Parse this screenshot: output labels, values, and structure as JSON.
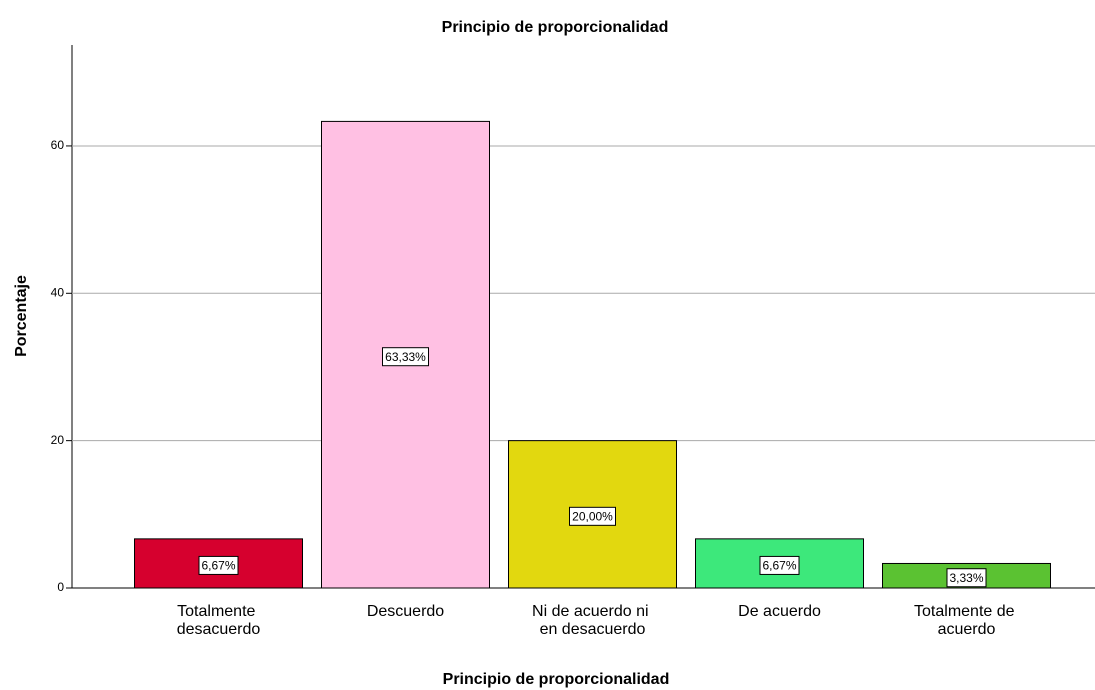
{
  "chart_data": {
    "type": "bar",
    "title": "Principio de proporcionalidad",
    "x_label": "Principio de proporcionalidad",
    "y_label": "Porcentaje",
    "categories": [
      "Totalmente desacuerdo",
      "Descuerdo",
      "Ni de acuerdo ni en desacuerdo",
      "De acuerdo",
      "Totalmente de acuerdo"
    ],
    "values": [
      6.67,
      63.33,
      20.0,
      6.67,
      3.33
    ],
    "value_labels": [
      "6,67%",
      "63,33%",
      "20,00%",
      "6,67%",
      "3,33%"
    ],
    "colors": [
      "#d6002e",
      "#ffc0e3",
      "#e2d80f",
      "#3de87b",
      "#5bc232"
    ],
    "ylim": [
      0,
      73.7
    ],
    "yticks": [
      0,
      20,
      40,
      60
    ],
    "grid": true
  }
}
